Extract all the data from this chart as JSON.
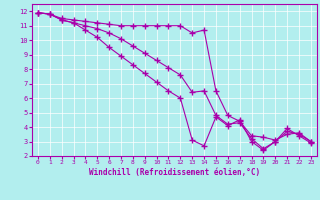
{
  "title": "Windchill (Refroidissement éolien,°C)",
  "bg_color": "#b2eeee",
  "line_color": "#aa00aa",
  "grid_color": "#ffffff",
  "xlim": [
    -0.5,
    23.5
  ],
  "ylim": [
    2,
    12.5
  ],
  "xticks": [
    0,
    1,
    2,
    3,
    4,
    5,
    6,
    7,
    8,
    9,
    10,
    11,
    12,
    13,
    14,
    15,
    16,
    17,
    18,
    19,
    20,
    21,
    22,
    23
  ],
  "yticks": [
    2,
    3,
    4,
    5,
    6,
    7,
    8,
    9,
    10,
    11,
    12
  ],
  "line1_x": [
    0,
    1,
    2,
    3,
    4,
    5,
    6,
    7,
    8,
    9,
    10,
    11,
    12,
    13,
    14,
    15,
    16,
    17,
    18,
    19,
    20,
    21,
    22,
    23
  ],
  "line1_y": [
    11.9,
    11.8,
    11.5,
    11.4,
    11.3,
    11.2,
    11.1,
    11.0,
    11.0,
    11.0,
    11.0,
    11.0,
    11.0,
    10.5,
    10.7,
    6.5,
    4.8,
    4.4,
    3.4,
    3.3,
    3.1,
    3.5,
    3.6,
    3.0
  ],
  "line2_x": [
    0,
    1,
    2,
    3,
    4,
    5,
    6,
    7,
    8,
    9,
    10,
    11,
    12,
    13,
    14,
    15,
    16,
    17,
    18,
    19,
    20,
    21,
    22,
    23
  ],
  "line2_y": [
    11.9,
    11.8,
    11.4,
    11.2,
    11.0,
    10.8,
    10.5,
    10.1,
    9.6,
    9.1,
    8.6,
    8.1,
    7.6,
    6.4,
    6.5,
    4.8,
    4.2,
    4.3,
    3.2,
    2.5,
    3.0,
    3.7,
    3.5,
    3.0
  ],
  "line3_x": [
    0,
    1,
    2,
    3,
    4,
    5,
    6,
    7,
    8,
    9,
    10,
    11,
    12,
    13,
    14,
    15,
    16,
    17,
    18,
    19,
    20,
    21,
    22,
    23
  ],
  "line3_y": [
    11.9,
    11.8,
    11.4,
    11.2,
    10.7,
    10.2,
    9.5,
    8.9,
    8.3,
    7.7,
    7.1,
    6.5,
    6.0,
    3.1,
    2.7,
    4.7,
    4.1,
    4.5,
    3.0,
    2.4,
    3.0,
    3.9,
    3.4,
    2.9
  ]
}
